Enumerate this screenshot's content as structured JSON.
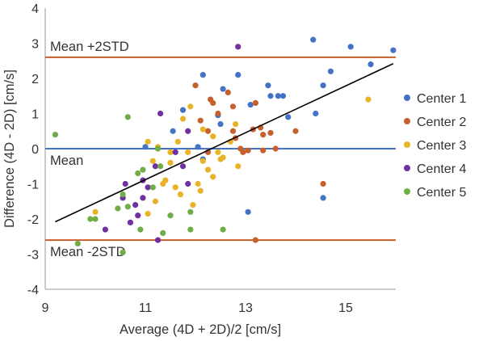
{
  "chart_data": {
    "type": "scatter",
    "title": "",
    "xlabel": "Average (4D + 2D)/2 [cm/s]",
    "ylabel": "Difference (4D - 2D) [cm/s]",
    "xlim": [
      9,
      16
    ],
    "ylim": [
      -4,
      4
    ],
    "x_ticks": [
      9,
      11,
      13,
      15
    ],
    "y_ticks": [
      -4,
      -3,
      -2,
      -1,
      0,
      1,
      2,
      3,
      4
    ],
    "grid": false,
    "legend_position": "right",
    "reference_lines": [
      {
        "label": "Mean +2STD",
        "y": 2.6,
        "color": "#c6602c"
      },
      {
        "label": "Mean",
        "y": 0.0,
        "color": "#4472c4"
      },
      {
        "label": "Mean -2STD",
        "y": -2.6,
        "color": "#c6602c"
      }
    ],
    "trend_line": {
      "x": [
        9.2,
        15.95
      ],
      "y": [
        -2.08,
        2.42
      ],
      "color": "#000000"
    },
    "series": [
      {
        "name": "Center 1",
        "color": "#4472c4",
        "points": [
          [
            14.35,
            3.1
          ],
          [
            15.1,
            2.9
          ],
          [
            15.95,
            2.8
          ],
          [
            14.7,
            2.2
          ],
          [
            15.5,
            2.4
          ],
          [
            12.15,
            2.1
          ],
          [
            12.85,
            2.1
          ],
          [
            12.55,
            1.7
          ],
          [
            13.1,
            1.25
          ],
          [
            13.45,
            1.8
          ],
          [
            13.5,
            1.5
          ],
          [
            13.65,
            1.5
          ],
          [
            13.75,
            1.5
          ],
          [
            14.55,
            1.8
          ],
          [
            14.4,
            1.0
          ],
          [
            13.85,
            0.9
          ],
          [
            12.45,
            0.95
          ],
          [
            12.5,
            0.7
          ],
          [
            11.75,
            1.1
          ],
          [
            11.55,
            0.5
          ],
          [
            12.05,
            0.05
          ],
          [
            11.0,
            0.05
          ],
          [
            14.55,
            -1.4
          ],
          [
            13.05,
            -1.8
          ],
          [
            12.15,
            -0.3
          ]
        ]
      },
      {
        "name": "Center 2",
        "color": "#c6602c",
        "points": [
          [
            12.0,
            1.8
          ],
          [
            12.3,
            1.4
          ],
          [
            12.35,
            1.3
          ],
          [
            12.65,
            1.6
          ],
          [
            12.75,
            1.2
          ],
          [
            13.2,
            1.3
          ],
          [
            12.45,
            1.0
          ],
          [
            12.1,
            0.8
          ],
          [
            12.25,
            0.5
          ],
          [
            12.75,
            0.5
          ],
          [
            12.8,
            0.3
          ],
          [
            13.15,
            0.55
          ],
          [
            13.3,
            0.6
          ],
          [
            13.35,
            0.4
          ],
          [
            13.5,
            0.45
          ],
          [
            13.35,
            -0.05
          ],
          [
            13.6,
            0.0
          ],
          [
            14.0,
            0.5
          ],
          [
            12.9,
            0.0
          ],
          [
            12.95,
            -0.1
          ],
          [
            13.05,
            -0.05
          ],
          [
            14.55,
            -1.0
          ],
          [
            13.2,
            -2.6
          ],
          [
            12.25,
            -0.1
          ]
        ]
      },
      {
        "name": "Center 3",
        "color": "#e8b326",
        "points": [
          [
            11.9,
            1.2
          ],
          [
            11.75,
            0.85
          ],
          [
            12.15,
            0.55
          ],
          [
            12.35,
            0.35
          ],
          [
            11.65,
            0.2
          ],
          [
            11.05,
            0.2
          ],
          [
            11.25,
            0.05
          ],
          [
            11.5,
            -0.1
          ],
          [
            11.85,
            -0.1
          ],
          [
            12.45,
            -0.1
          ],
          [
            12.55,
            -0.25
          ],
          [
            12.15,
            -0.35
          ],
          [
            12.25,
            -0.6
          ],
          [
            12.35,
            -0.8
          ],
          [
            11.15,
            -0.35
          ],
          [
            11.5,
            -0.4
          ],
          [
            11.4,
            -0.9
          ],
          [
            11.6,
            -1.1
          ],
          [
            11.7,
            -1.3
          ],
          [
            12.05,
            -1.0
          ],
          [
            12.1,
            -1.2
          ],
          [
            11.95,
            -1.6
          ],
          [
            11.2,
            -1.5
          ],
          [
            11.05,
            -1.85
          ],
          [
            10.0,
            -1.8
          ],
          [
            12.5,
            -0.3
          ],
          [
            12.7,
            0.2
          ],
          [
            12.8,
            0.7
          ],
          [
            12.85,
            -0.5
          ],
          [
            15.45,
            1.4
          ],
          [
            11.35,
            -1.0
          ]
        ]
      },
      {
        "name": "Center 4",
        "color": "#7030a0",
        "points": [
          [
            12.85,
            2.9
          ],
          [
            11.3,
            1.0
          ],
          [
            11.85,
            0.5
          ],
          [
            11.6,
            -0.1
          ],
          [
            11.75,
            -0.5
          ],
          [
            11.2,
            -0.5
          ],
          [
            10.95,
            -0.9
          ],
          [
            11.05,
            -1.1
          ],
          [
            10.6,
            -1.0
          ],
          [
            10.55,
            -1.4
          ],
          [
            10.95,
            -1.4
          ],
          [
            10.8,
            -1.6
          ],
          [
            10.85,
            -1.9
          ],
          [
            10.7,
            -2.1
          ],
          [
            10.2,
            -2.3
          ],
          [
            11.25,
            -2.6
          ],
          [
            11.85,
            -1.0
          ]
        ]
      },
      {
        "name": "Center 5",
        "color": "#70ad47",
        "points": [
          [
            9.2,
            0.4
          ],
          [
            10.65,
            0.9
          ],
          [
            11.25,
            0.0
          ],
          [
            11.3,
            -0.5
          ],
          [
            10.95,
            -0.6
          ],
          [
            10.85,
            -0.7
          ],
          [
            10.45,
            -1.7
          ],
          [
            10.65,
            -1.65
          ],
          [
            11.15,
            -1.1
          ],
          [
            10.55,
            -1.3
          ],
          [
            10.0,
            -2.0
          ],
          [
            9.9,
            -2.0
          ],
          [
            10.9,
            -2.3
          ],
          [
            11.35,
            -2.4
          ],
          [
            11.5,
            -1.9
          ],
          [
            11.9,
            -1.8
          ],
          [
            11.9,
            -2.3
          ],
          [
            12.55,
            -2.3
          ],
          [
            10.55,
            -2.95
          ],
          [
            9.65,
            -2.7
          ]
        ]
      }
    ]
  }
}
